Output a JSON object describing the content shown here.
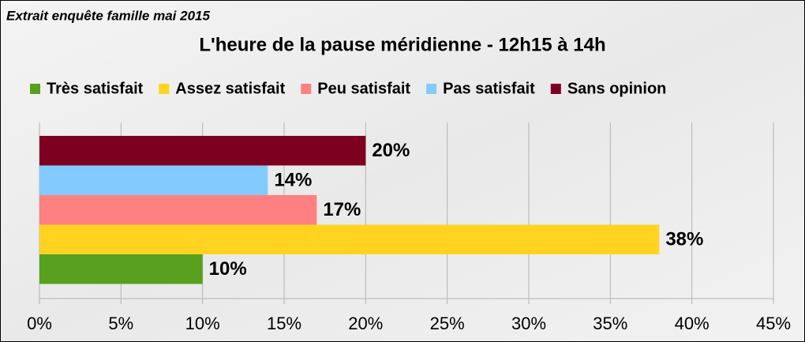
{
  "chart_data": {
    "type": "hbar",
    "annotation": "Extrait enquête famille mai 2015",
    "title": "L'heure de la pause méridienne - 12h15 à 14h",
    "series": [
      {
        "name": "Très satisfait",
        "color": "#57a01e",
        "values": [
          10
        ],
        "value_labels": [
          "10%"
        ]
      },
      {
        "name": "Assez satisfait",
        "color": "#ffd320",
        "values": [
          38
        ],
        "value_labels": [
          "38%"
        ]
      },
      {
        "name": "Peu satisfait",
        "color": "#ff8080",
        "values": [
          17
        ],
        "value_labels": [
          "17%"
        ]
      },
      {
        "name": "Pas satisfait",
        "color": "#83caff",
        "values": [
          14
        ],
        "value_labels": [
          "14%"
        ]
      },
      {
        "name": "Sans opinion",
        "color": "#7e0021",
        "values": [
          20
        ],
        "value_labels": [
          "20%"
        ]
      }
    ],
    "xlim": [
      0,
      45
    ],
    "xticks": [
      {
        "value": 0,
        "label": "0%"
      },
      {
        "value": 5,
        "label": "5%"
      },
      {
        "value": 10,
        "label": "10%"
      },
      {
        "value": 15,
        "label": "15%"
      },
      {
        "value": 20,
        "label": "20%"
      },
      {
        "value": 25,
        "label": "25%"
      },
      {
        "value": 30,
        "label": "30%"
      },
      {
        "value": 35,
        "label": "35%"
      },
      {
        "value": 40,
        "label": "40%"
      },
      {
        "value": 45,
        "label": "45%"
      }
    ],
    "grid": true,
    "legend": "top"
  }
}
